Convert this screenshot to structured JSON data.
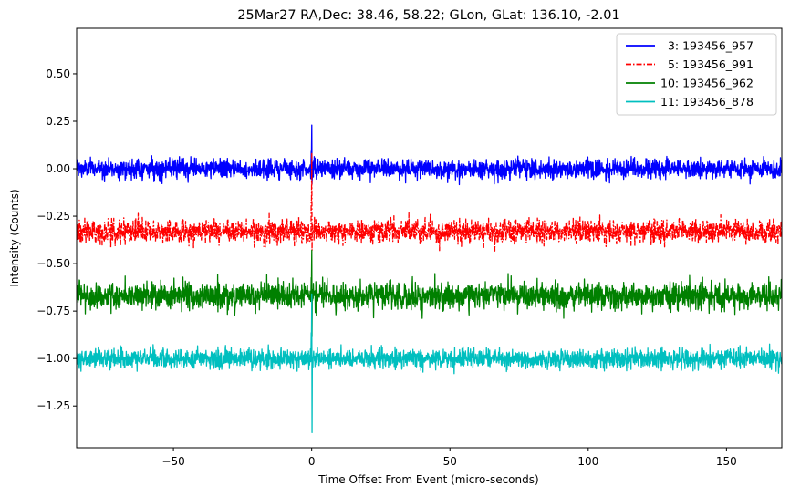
{
  "chart_data": {
    "type": "line",
    "title": "25Mar27 RA,Dec:   38.46,  58.22; GLon, GLat:  136.10,  -2.01",
    "xlabel": "Time Offset From Event (micro-seconds)",
    "ylabel": "Intensity (Counts)",
    "xlim": [
      -85,
      170
    ],
    "ylim": [
      -1.47,
      0.74
    ],
    "xticks": [
      -50,
      0,
      50,
      100,
      150
    ],
    "xtick_labels": [
      "−50",
      "0",
      "50",
      "100",
      "150"
    ],
    "yticks": [
      0.5,
      0.25,
      0.0,
      -0.25,
      -0.5,
      -0.75,
      -1.0,
      -1.25
    ],
    "ytick_labels": [
      "0.50",
      "0.25",
      "0.00",
      "−0.25",
      "−0.50",
      "−0.75",
      "−1.00",
      "−1.25"
    ],
    "grid": false,
    "legend_position": "top-right",
    "event_time": 0,
    "series": [
      {
        "name": "  3: 193456_957",
        "color": "#0000ff",
        "linestyle": "solid",
        "baseline": 0.0,
        "noise_amplitude": 0.05,
        "spike_max": 0.23,
        "spike_min": -0.08
      },
      {
        "name": "  5: 193456_991",
        "color": "#ff0000",
        "linestyle": "dashdot",
        "baseline": -0.33,
        "noise_amplitude": 0.06,
        "spike_max": 0.08,
        "spike_min": -0.43
      },
      {
        "name": "10: 193456_962",
        "color": "#008000",
        "linestyle": "solid",
        "baseline": -0.67,
        "noise_amplitude": 0.07,
        "spike_max": -0.43,
        "spike_min": -0.88
      },
      {
        "name": "11: 193456_878",
        "color": "#00bfbf",
        "linestyle": "solid",
        "baseline": -1.0,
        "noise_amplitude": 0.05,
        "spike_max": -0.66,
        "spike_min": -1.39
      }
    ]
  }
}
